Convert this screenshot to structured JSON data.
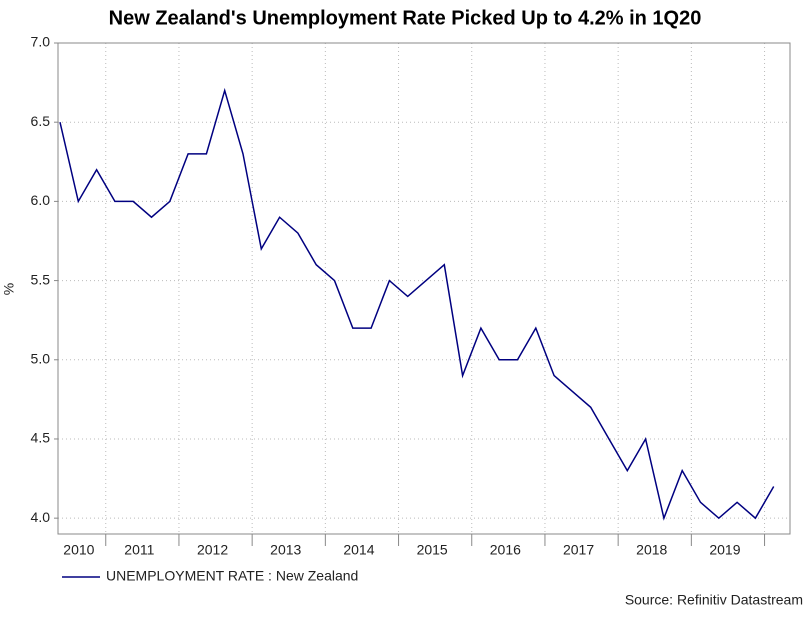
{
  "chart_data": {
    "type": "line",
    "title": "New Zealand's Unemployment Rate Picked Up to 4.2% in 1Q20",
    "y_label": "%",
    "source": "Source: Refinitiv Datastream",
    "categories": [
      "2010",
      null,
      null,
      "2011",
      null,
      null,
      null,
      "2012",
      null,
      null,
      null,
      "2013",
      null,
      null,
      null,
      "2014",
      null,
      null,
      null,
      "2015",
      null,
      null,
      null,
      "2016",
      null,
      null,
      null,
      "2017",
      null,
      null,
      null,
      "2018",
      null,
      null,
      null,
      "2019",
      null,
      null,
      null,
      null
    ],
    "series": [
      {
        "name": "UNEMPLOYMENT RATE : New Zealand",
        "color": "#000080",
        "values": [
          6.5,
          6.0,
          6.2,
          6.0,
          6.0,
          5.9,
          6.0,
          6.3,
          6.3,
          6.7,
          6.3,
          5.7,
          5.9,
          5.8,
          5.6,
          5.5,
          5.2,
          5.2,
          5.5,
          5.4,
          5.5,
          5.6,
          4.9,
          5.2,
          5.0,
          5.0,
          5.2,
          4.9,
          4.8,
          4.7,
          4.5,
          4.3,
          4.5,
          4.0,
          4.3,
          4.1,
          4.0,
          4.1,
          4.0,
          4.2
        ]
      }
    ],
    "ylim": [
      3.9,
      7.0
    ],
    "yticks": [
      {
        "value": 4,
        "label": "4.0"
      },
      4.5,
      {
        "value": 5,
        "label": "5.0"
      },
      5.5,
      {
        "value": 6,
        "label": "6.0"
      },
      6.5,
      {
        "value": 7,
        "label": "7.0"
      }
    ],
    "grid": true
  }
}
